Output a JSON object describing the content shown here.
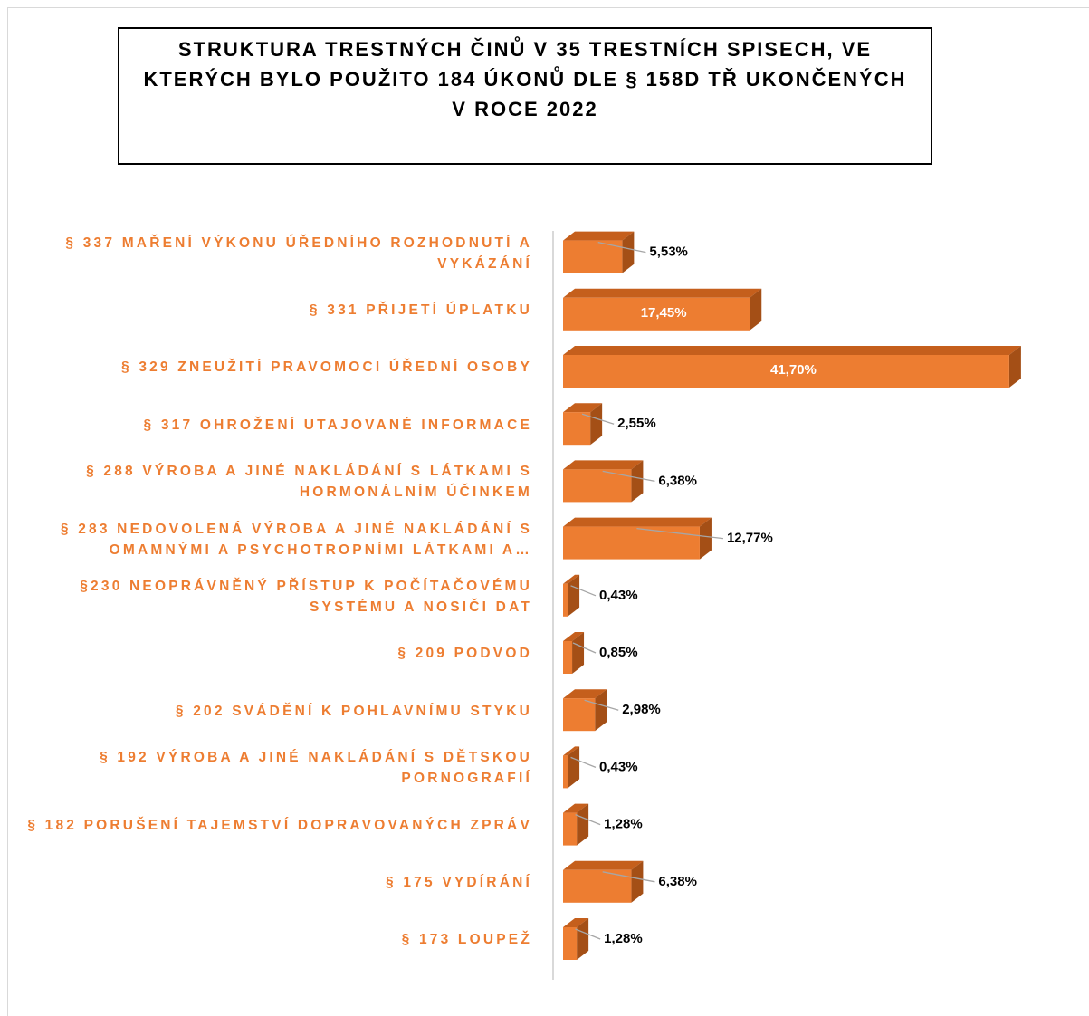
{
  "chart_data": {
    "type": "bar3d_horizontal",
    "title": "STRUKTURA TRESTNÝCH ČINŮ V 35 TRESTNÍCH SPISECH, VE KTERÝCH BYLO POUŽITO 184 ÚKONŮ DLE § 158D TŘ UKONČENÝCH V ROCE 2022",
    "categories": [
      "§ 337 MAŘENÍ VÝKONU ÚŘEDNÍHO ROZHODNUTÍ A VYKÁZÁNÍ",
      "§ 331 PŘIJETÍ ÚPLATKU",
      "§ 329 ZNEUŽITÍ PRAVOMOCI ÚŘEDNÍ OSOBY",
      "§ 317 OHROŽENÍ UTAJOVANÉ INFORMACE",
      "§ 288 VÝROBA A JINÉ NAKLÁDÁNÍ S LÁTKAMI S HORMONÁLNÍM ÚČINKEM",
      "§ 283 NEDOVOLENÁ VÝROBA A JINÉ NAKLÁDÁNÍ S OMAMNÝMI A PSYCHOTROPNÍMI LÁTKAMI A…",
      "§230 NEOPRÁVNĚNÝ PŘÍSTUP K POČÍTAČOVÉMU SYSTÉMU A NOSIČI DAT",
      "§ 209 PODVOD",
      "§ 202  SVÁDĚNÍ K POHLAVNÍMU STYKU",
      "§ 192 VÝROBA A JINÉ NAKLÁDÁNÍ S DĚTSKOU PORNOGRAFIÍ",
      "§ 182 PORUŠENÍ TAJEMSTVÍ DOPRAVOVANÝCH ZPRÁV",
      "§ 175 VYDÍRÁNÍ",
      "§ 173 LOUPEŽ"
    ],
    "values": [
      5.53,
      17.45,
      41.7,
      2.55,
      6.38,
      12.77,
      0.43,
      0.85,
      2.98,
      0.43,
      1.28,
      6.38,
      1.28
    ],
    "value_labels": [
      "5,53%",
      "17,45%",
      "41,70%",
      "2,55%",
      "6,38%",
      "12,77%",
      "0,43%",
      "0,85%",
      "2,98%",
      "0,43%",
      "1,28%",
      "6,38%",
      "1,28%"
    ],
    "color": "#ED7D31"
  }
}
